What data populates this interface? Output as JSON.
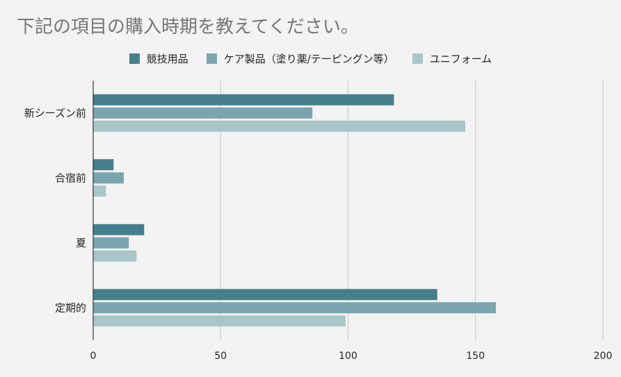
{
  "chart_data": {
    "type": "bar",
    "orientation": "horizontal",
    "title": "下記の項目の購入時期を教えてください。",
    "categories": [
      "新シーズン前",
      "合宿前",
      "夏",
      "定期的"
    ],
    "series": [
      {
        "name": "競技用品",
        "color": "#467f8c",
        "values": [
          118,
          8,
          20,
          135
        ]
      },
      {
        "name": "ケア製品（塗り薬/テーピングン等）",
        "color": "#7ba5ae",
        "values": [
          86,
          12,
          14,
          158
        ]
      },
      {
        "name": "ユニフォーム",
        "color": "#a8c6ca",
        "values": [
          146,
          5,
          17,
          99
        ]
      }
    ],
    "xlim": [
      0,
      200
    ],
    "xticks": [
      0,
      50,
      100,
      150,
      200
    ],
    "grid": true,
    "legend_position": "top"
  }
}
